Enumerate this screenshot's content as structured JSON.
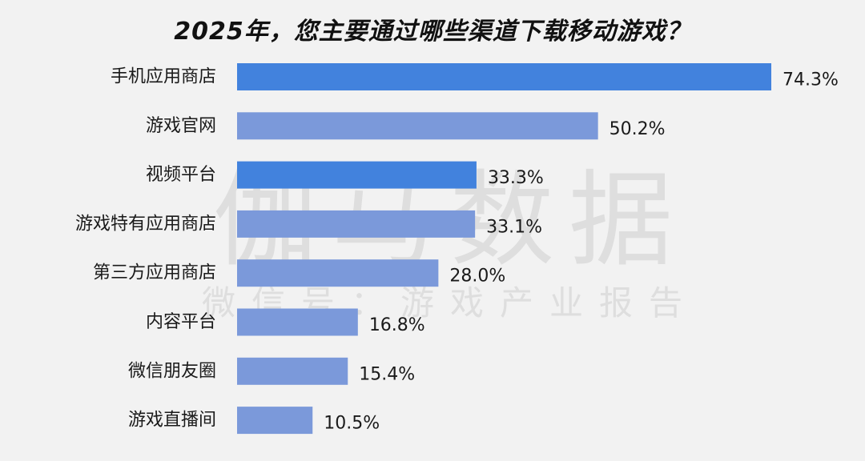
{
  "watermark": {
    "main": "伽马数据",
    "sub": "微信号：游戏产业报告"
  },
  "colors": {
    "background": "#f2f2f2",
    "bar_highlight": "#4282dd",
    "bar_normal": "#7b99da",
    "text": "#1a1a1a"
  },
  "chart_data": {
    "type": "bar",
    "orientation": "horizontal",
    "title": "2025年，您主要通过哪些渠道下载移动游戏？",
    "categories": [
      "手机应用商店",
      "游戏官网",
      "视频平台",
      "游戏特有应用商店",
      "第三方应用商店",
      "内容平台",
      "微信朋友圈",
      "游戏直播间"
    ],
    "values": [
      74.3,
      50.2,
      33.3,
      33.1,
      28.0,
      16.8,
      15.4,
      10.5
    ],
    "value_labels": [
      "74.3%",
      "50.2%",
      "33.3%",
      "33.1%",
      "28.0%",
      "16.8%",
      "15.4%",
      "10.5%"
    ],
    "highlight": [
      true,
      false,
      true,
      false,
      false,
      false,
      false,
      false
    ],
    "unit": "%",
    "xlim": [
      0,
      100
    ],
    "grid": false,
    "legend": "none"
  }
}
